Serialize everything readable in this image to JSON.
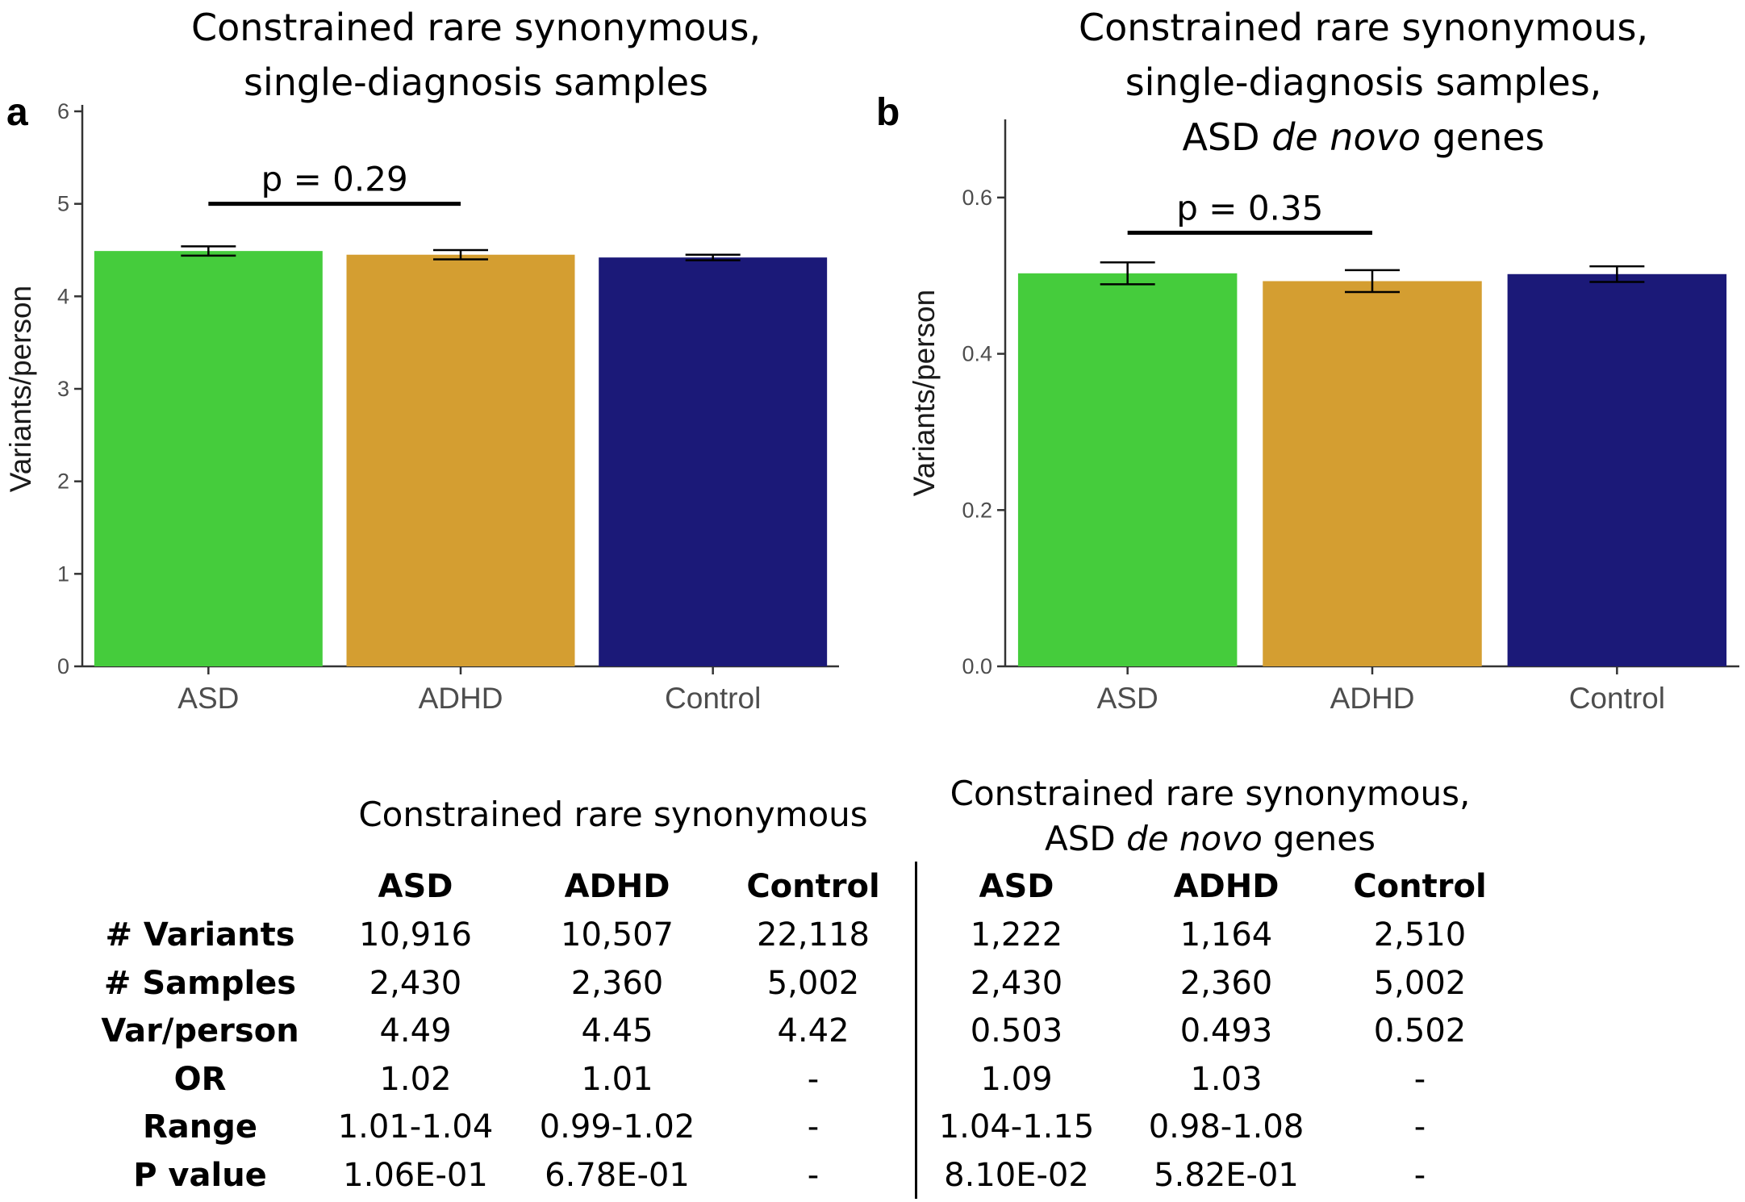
{
  "chart_data": [
    {
      "type": "bar",
      "panel": "a",
      "title_lines": [
        "Constrained rare synonymous,",
        "single-diagnosis samples"
      ],
      "title_italic": "",
      "ylabel": "Variants/person",
      "xlabel": "",
      "categories": [
        "ASD",
        "ADHD",
        "Control"
      ],
      "values": [
        4.49,
        4.45,
        4.42
      ],
      "error_low": [
        4.44,
        4.4,
        4.39
      ],
      "error_high": [
        4.54,
        4.5,
        4.45
      ],
      "colors": [
        "#45cc3c",
        "#d49e31",
        "#1b1978"
      ],
      "ylim": [
        0,
        6
      ],
      "yticks": [
        0,
        1,
        2,
        3,
        4,
        5,
        6
      ],
      "ytick_labels": [
        "0",
        "1",
        "2",
        "3",
        "4",
        "5",
        "6"
      ],
      "annotation": {
        "text": "p = 0.29",
        "from": "ASD",
        "to": "ADHD",
        "y": 5.0
      },
      "grid": false
    },
    {
      "type": "bar",
      "panel": "b",
      "title_lines": [
        "Constrained rare synonymous,",
        "single-diagnosis samples,"
      ],
      "title_line3_prefix": "ASD ",
      "title_italic": "de novo",
      "title_line3_suffix": " genes",
      "ylabel": "Variants/person",
      "xlabel": "",
      "categories": [
        "ASD",
        "ADHD",
        "Control"
      ],
      "values": [
        0.503,
        0.493,
        0.502
      ],
      "error_low": [
        0.489,
        0.479,
        0.492
      ],
      "error_high": [
        0.517,
        0.507,
        0.512
      ],
      "colors": [
        "#45cc3c",
        "#d49e31",
        "#1b1978"
      ],
      "ylim": [
        0,
        0.7
      ],
      "yticks": [
        0.0,
        0.2,
        0.4,
        0.6
      ],
      "ytick_labels": [
        "0.0",
        "0.2",
        "0.4",
        "0.6"
      ],
      "annotation": {
        "text": "p = 0.35",
        "from": "ASD",
        "to": "ADHD",
        "y": 0.555
      },
      "grid": false
    },
    {
      "type": "table",
      "left_title": "Constrained rare synonymous",
      "right_title_line1": "Constrained rare synonymous,",
      "right_title_prefix": "ASD ",
      "right_title_italic": "de novo",
      "right_title_suffix": " genes",
      "headers": [
        "ASD",
        "ADHD",
        "Control",
        "ASD",
        "ADHD",
        "Control"
      ],
      "row_labels": [
        "# Variants",
        "# Samples",
        "Var/person",
        "OR",
        "Range",
        "P value"
      ],
      "rows": [
        [
          "10,916",
          "10,507",
          "22,118",
          "1,222",
          "1,164",
          "2,510"
        ],
        [
          "2,430",
          "2,360",
          "5,002",
          "2,430",
          "2,360",
          "5,002"
        ],
        [
          "4.49",
          "4.45",
          "4.42",
          "0.503",
          "0.493",
          "0.502"
        ],
        [
          "1.02",
          "1.01",
          "-",
          "1.09",
          "1.03",
          "-"
        ],
        [
          "1.01-1.04",
          "0.99-1.02",
          "-",
          "1.04-1.15",
          "0.98-1.08",
          "-"
        ],
        [
          "1.06E-01",
          "6.78E-01",
          "-",
          "8.10E-02",
          "5.82E-01",
          "-"
        ]
      ]
    }
  ]
}
